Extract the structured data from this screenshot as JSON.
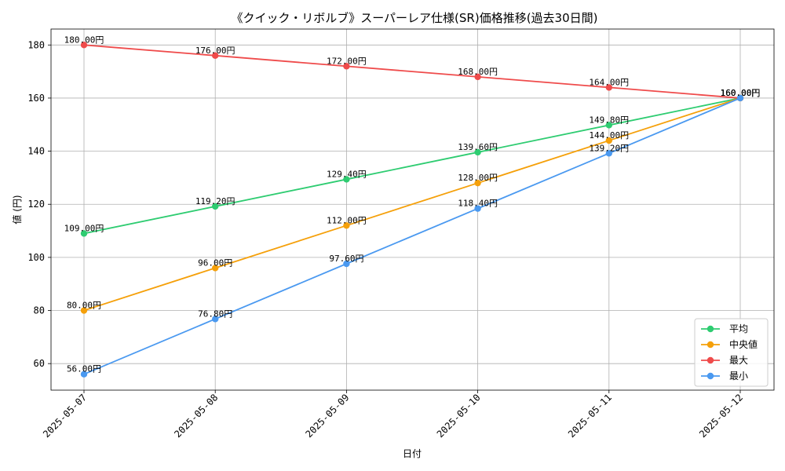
{
  "chart_data": {
    "type": "line",
    "title": "《クイック・リボルブ》スーパーレア仕様(SR)価格推移(過去30日間)",
    "xlabel": "日付",
    "ylabel": "値 (円)",
    "categories": [
      "2025-05-07",
      "2025-05-08",
      "2025-05-09",
      "2025-05-10",
      "2025-05-11",
      "2025-05-12"
    ],
    "ylim": [
      50,
      186
    ],
    "yticks": [
      60,
      80,
      100,
      120,
      140,
      160,
      180
    ],
    "grid": true,
    "legend_position": "bottom-right",
    "value_suffix": "円",
    "series": [
      {
        "name": "平均",
        "color": "#2ecc71",
        "values": [
          109.0,
          119.2,
          129.4,
          139.6,
          149.8,
          160.0
        ]
      },
      {
        "name": "中央値",
        "color": "#f5a00a",
        "values": [
          80.0,
          96.0,
          112.0,
          128.0,
          144.0,
          160.0
        ]
      },
      {
        "name": "最大",
        "color": "#ef4b4b",
        "values": [
          180.0,
          176.0,
          172.0,
          168.0,
          164.0,
          160.0
        ]
      },
      {
        "name": "最小",
        "color": "#4a99f0",
        "values": [
          56.0,
          76.8,
          97.6,
          118.4,
          139.2,
          160.0
        ]
      }
    ]
  }
}
